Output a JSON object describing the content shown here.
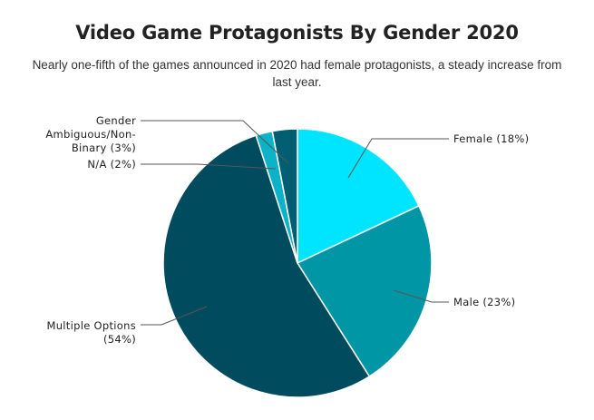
{
  "chart_data": {
    "type": "pie",
    "title": "Video Game Protagonists By Gender 2020",
    "subtitle": "Nearly one-fifth of the games announced in 2020 had female protagonists, a steady increase from last year.",
    "start_angle_deg": 0,
    "direction": "clockwise",
    "slices": [
      {
        "name": "Female",
        "value": 18,
        "color": "#00e5ff",
        "label_lines": [
          "Female (18%)"
        ]
      },
      {
        "name": "Male",
        "value": 23,
        "color": "#0096a6",
        "label_lines": [
          "Male (23%)"
        ]
      },
      {
        "name": "Multiple Options",
        "value": 54,
        "color": "#004c5e",
        "label_lines": [
          "Multiple Options",
          "(54%)"
        ]
      },
      {
        "name": "N/A",
        "value": 2,
        "color": "#0bb2c8",
        "label_lines": [
          "N/A (2%)"
        ]
      },
      {
        "name": "Gender Ambiguous/Non-Binary",
        "value": 3,
        "color": "#005e72",
        "label_lines": [
          "Gender",
          "Ambiguous/Non-",
          "Binary (3%)"
        ]
      }
    ]
  }
}
